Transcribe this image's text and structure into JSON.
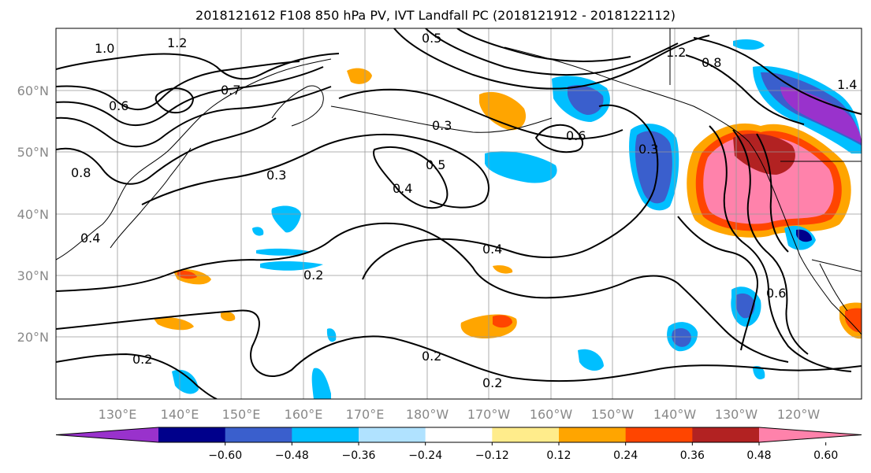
{
  "title": "2018121612 F108 850 hPa PV, IVT Landfall PC (2018121912 - 2018122112)",
  "latitude_labels": [
    "60°N",
    "50°N",
    "40°N",
    "30°N",
    "20°N"
  ],
  "longitude_labels": [
    "130°E",
    "140°E",
    "150°E",
    "160°E",
    "170°E",
    "180°W",
    "170°W",
    "160°W",
    "150°W",
    "140°W",
    "130°W",
    "120°W"
  ],
  "contour_labels": [
    "1.0",
    "1.2",
    "0.5",
    "0.6",
    "0.8",
    "0.7",
    "0.3",
    "0.6",
    "0.3",
    "0.4",
    "0.5",
    "0.3",
    "0.2",
    "0.4",
    "0.4",
    "0.2",
    "0.2",
    "0.2",
    "1.4",
    "0.6",
    "0.8",
    "1.2"
  ],
  "colorbar": {
    "colors": [
      "#9932cc",
      "#00008b",
      "#3a5fcd",
      "#00bfff",
      "#b0e2ff",
      "#ffffff",
      "#ffec8b",
      "#ffa500",
      "#ff4500",
      "#b22222",
      "#ff82ab"
    ],
    "tick_labels": [
      "−0.60",
      "−0.48",
      "−0.36",
      "−0.24",
      "−0.12",
      "0.12",
      "0.24",
      "0.36",
      "0.48",
      "0.60"
    ]
  }
}
